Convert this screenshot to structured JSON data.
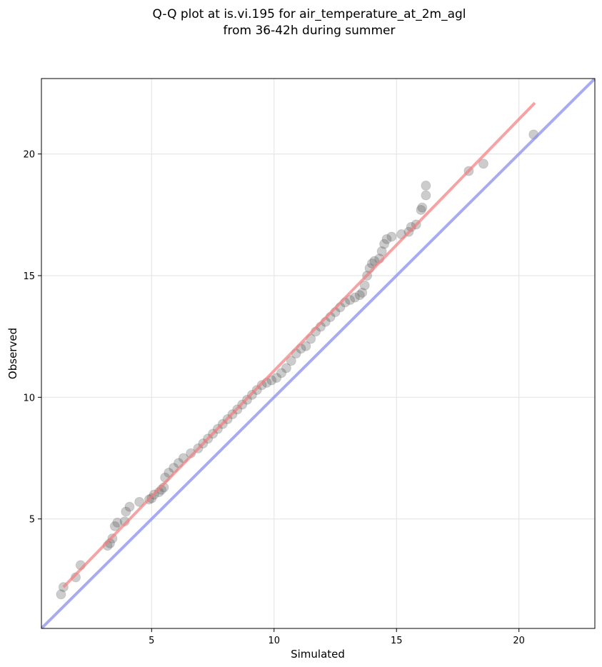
{
  "chart_data": {
    "type": "scatter",
    "title_lines": [
      "Q-Q plot at is.vi.195 for air_temperature_at_2m_agl",
      "from 36-42h during summer"
    ],
    "xlabel": "Simulated",
    "ylabel": "Observed",
    "xlim": [
      0.5,
      23.1
    ],
    "ylim": [
      0.5,
      23.1
    ],
    "xticks": [
      5,
      10,
      15,
      20
    ],
    "yticks": [
      5,
      10,
      15,
      20
    ],
    "grid": true,
    "colors": {
      "points": "#555555",
      "point_edge": "#333333",
      "fit_line": "#f47c7c",
      "identity_line": "#8a8ff0"
    },
    "identity_line": {
      "x": [
        0.5,
        23.1
      ],
      "y": [
        0.5,
        23.1
      ]
    },
    "fit_line": {
      "x": [
        1.4,
        20.65
      ],
      "y": [
        2.2,
        22.1
      ]
    },
    "series": [
      {
        "x": [
          1.3,
          1.4,
          1.9,
          2.1,
          3.2,
          3.3,
          3.4,
          3.5,
          3.6,
          3.9,
          3.95,
          4.1,
          4.5,
          4.9,
          5.0,
          5.1,
          5.3,
          5.4,
          5.5,
          5.55,
          5.7,
          5.9,
          6.1,
          6.3,
          6.6,
          6.9,
          7.1,
          7.3,
          7.5,
          7.7,
          7.9,
          8.1,
          8.3,
          8.5,
          8.7,
          8.9,
          9.1,
          9.3,
          9.5,
          9.7,
          9.9,
          10.1,
          10.3,
          10.5,
          10.7,
          10.9,
          11.1,
          11.3,
          11.5,
          11.7,
          11.9,
          12.1,
          12.3,
          12.5,
          12.7,
          12.9,
          13.1,
          13.3,
          13.5,
          13.6,
          13.7,
          13.8,
          13.9,
          14.0,
          14.1,
          14.3,
          14.4,
          14.5,
          14.6,
          14.8,
          15.2,
          15.5,
          15.6,
          15.8,
          16.0,
          16.05,
          16.2,
          16.2,
          17.95,
          18.55,
          20.6
        ],
        "y": [
          1.9,
          2.2,
          2.6,
          3.1,
          3.9,
          4.0,
          4.2,
          4.7,
          4.85,
          4.9,
          5.3,
          5.5,
          5.7,
          5.8,
          5.85,
          6.0,
          6.1,
          6.2,
          6.3,
          6.7,
          6.9,
          7.1,
          7.3,
          7.5,
          7.7,
          7.9,
          8.1,
          8.3,
          8.5,
          8.7,
          8.9,
          9.1,
          9.3,
          9.5,
          9.7,
          9.9,
          10.1,
          10.3,
          10.5,
          10.6,
          10.7,
          10.8,
          11.0,
          11.2,
          11.5,
          11.8,
          12.0,
          12.1,
          12.4,
          12.7,
          12.9,
          13.1,
          13.3,
          13.5,
          13.7,
          13.9,
          14.0,
          14.1,
          14.2,
          14.3,
          14.6,
          15.0,
          15.3,
          15.5,
          15.6,
          15.7,
          16.0,
          16.3,
          16.5,
          16.6,
          16.7,
          16.8,
          17.0,
          17.1,
          17.7,
          17.8,
          18.3,
          18.7,
          19.3,
          19.6,
          20.8
        ]
      }
    ]
  }
}
